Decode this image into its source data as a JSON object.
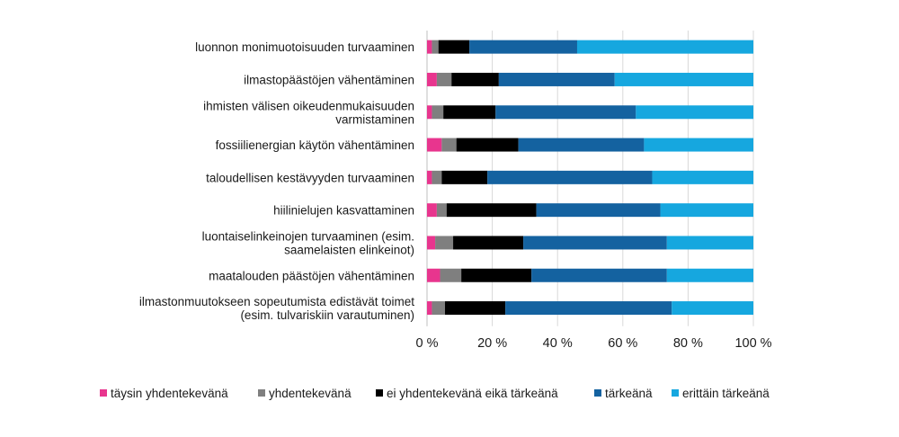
{
  "chart_data": {
    "type": "bar",
    "orientation": "horizontal",
    "stacked": "percent",
    "title": "",
    "xlabel": "",
    "ylabel": "",
    "xlim": [
      0,
      100
    ],
    "grid": true,
    "legend_position": "bottom",
    "categories": [
      [
        "luonnon monimuotoisuuden turvaaminen"
      ],
      [
        "ilmastopäästöjen vähentäminen"
      ],
      [
        "ihmisten välisen oikeudenmukaisuuden",
        "varmistaminen"
      ],
      [
        "fossiilienergian käytön vähentäminen"
      ],
      [
        "taloudellisen kestävyyden turvaaminen"
      ],
      [
        "hiilinielujen kasvattaminen"
      ],
      [
        "luontaiselinkeinojen turvaaminen (esim.",
        "saamelaisten elinkeinot)"
      ],
      [
        "maatalouden päästöjen vähentäminen"
      ],
      [
        "ilmastonmuutokseen sopeutumista edistävät toimet",
        "(esim. tulvariskiin varautuminen)"
      ]
    ],
    "ticks": [
      "0 %",
      "20 %",
      "40 %",
      "60 %",
      "80 %",
      "100 %"
    ],
    "series": [
      {
        "name": "täysin yhdentekevänä",
        "color": "#e8358e",
        "values": [
          1.5,
          3,
          1.5,
          4.5,
          1.5,
          3,
          2.5,
          4,
          1.5
        ]
      },
      {
        "name": "yhdentekevänä",
        "color": "#7f7f7f",
        "values": [
          2,
          4.5,
          3.5,
          4.5,
          3,
          3,
          5.5,
          6.5,
          4
        ]
      },
      {
        "name": "ei yhdentekevänä eikä tärkeänä",
        "color": "#000000",
        "values": [
          9.5,
          14.5,
          16,
          19,
          14,
          27.5,
          21.5,
          21.5,
          18.5
        ]
      },
      {
        "name": "tärkeänä",
        "color": "#1462a0",
        "values": [
          33,
          35.5,
          43,
          38.5,
          50.5,
          38,
          44,
          41.5,
          51
        ]
      },
      {
        "name": "erittäin tärkeänä",
        "color": "#16a7df",
        "values": [
          54,
          42.5,
          36,
          33.5,
          31,
          28.5,
          26.5,
          26.5,
          25
        ]
      }
    ]
  }
}
